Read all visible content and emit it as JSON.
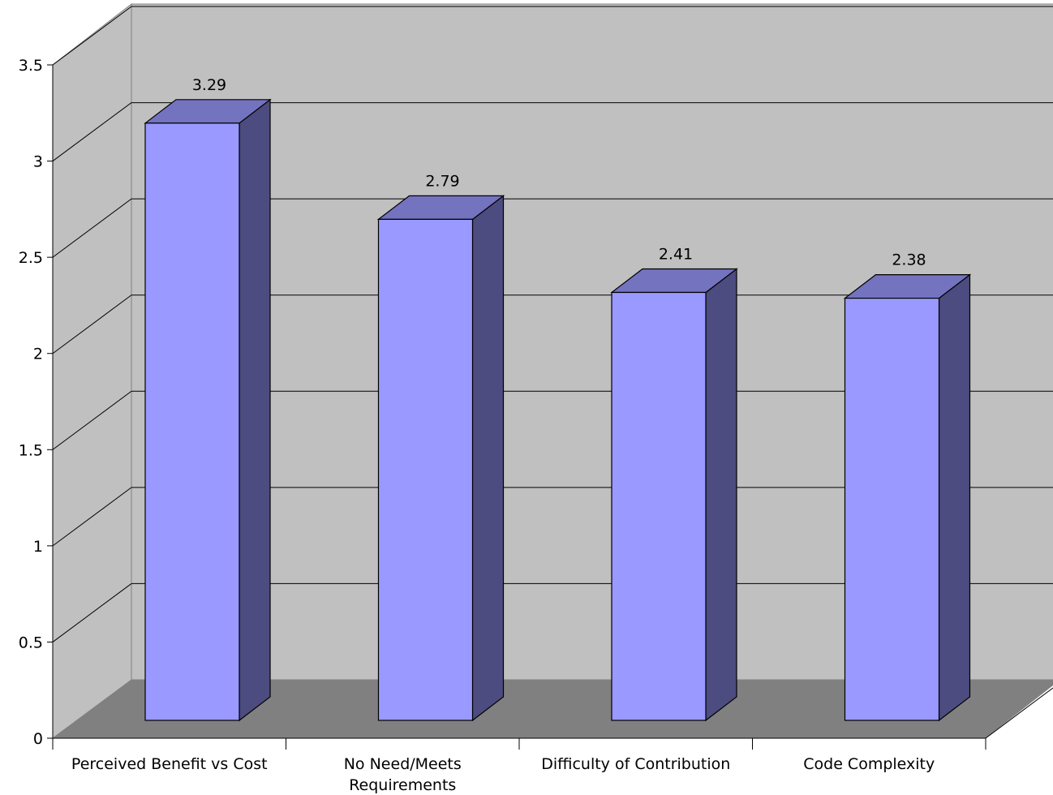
{
  "chart_data": {
    "type": "bar",
    "title": "",
    "xlabel": "",
    "ylabel": "",
    "categories": [
      "Perceived Benefit vs Cost",
      "No Need/Meets Requirements",
      "Difficulty of Contribution",
      "Code Complexity"
    ],
    "category_lines": [
      [
        "Perceived Benefit vs Cost"
      ],
      [
        "No Need/Meets",
        "Requirements"
      ],
      [
        "Difficulty of Contribution"
      ],
      [
        "Code Complexity"
      ]
    ],
    "values": [
      3.29,
      2.79,
      2.41,
      2.38
    ],
    "value_labels": [
      "3.29",
      "2.79",
      "2.41",
      "2.38"
    ],
    "ylim": [
      0,
      3.5
    ],
    "yticks": [
      0,
      0.5,
      1,
      1.5,
      2,
      2.5,
      3,
      3.5
    ],
    "ytick_labels": [
      "0",
      "0.5",
      "1",
      "1.5",
      "2",
      "2.5",
      "3",
      "3.5"
    ],
    "grid": true,
    "legend": "none",
    "three_d": true,
    "colors": {
      "bar_front": "#9999ff",
      "bar_top": "#7373c0",
      "bar_side": "#4c4c80",
      "back_wall": "#c0c0c0",
      "side_wall": "#c0c0c0",
      "floor": "#808080",
      "gridline": "#000000",
      "axis": "#000000"
    }
  }
}
